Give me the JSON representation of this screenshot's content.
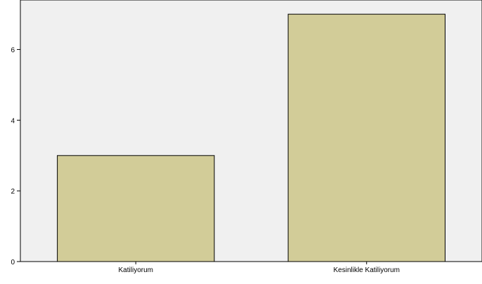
{
  "chart_data": {
    "type": "bar",
    "categories": [
      "Katiliyorum",
      "Kesinlikle Katiliyorum"
    ],
    "values": [
      3,
      7
    ],
    "title": "",
    "xlabel": "",
    "ylabel": "",
    "ylim": [
      0,
      7.4
    ],
    "yticks": [
      0,
      2,
      4,
      6
    ],
    "grid": false,
    "colors": {
      "plot_background": "#f0f0f0",
      "bar_fill": "#d2cc98",
      "bar_stroke": "#000000",
      "axis": "#000000"
    }
  }
}
